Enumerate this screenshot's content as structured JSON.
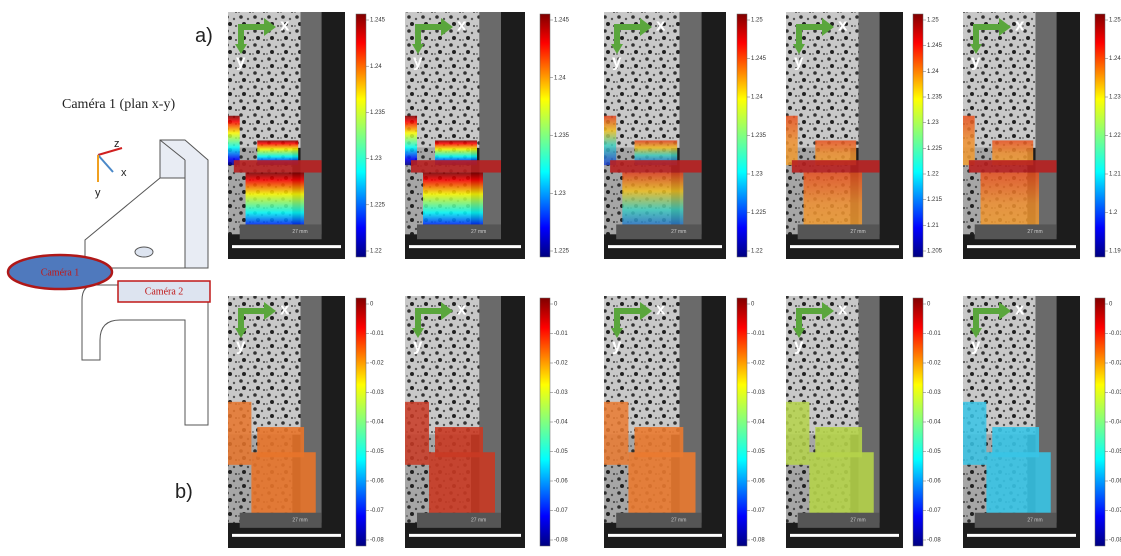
{
  "labels": {
    "a": "a)",
    "b": "b)"
  },
  "diagram": {
    "title": "Caméra 1 (plan x-y)",
    "axes": [
      "z",
      "x",
      "y"
    ],
    "camera_1": "Caméra 1",
    "camera_2": "Caméra 2"
  },
  "rows": [
    {
      "panels": [
        {
          "axis_x": "x",
          "axis_y": "y",
          "scale": "27 mm",
          "colorbar": [
            "1.245",
            "1.24",
            "1.235",
            "1.23",
            "1.225",
            "1.22"
          ]
        },
        {
          "axis_x": "x",
          "axis_y": "y",
          "scale": "27 mm",
          "colorbar": [
            "1.245",
            "1.24",
            "1.235",
            "1.23",
            "1.225"
          ]
        },
        {
          "axis_x": "x",
          "axis_y": "y",
          "scale": "27 mm",
          "colorbar": [
            "1.25",
            "1.245",
            "1.24",
            "1.235",
            "1.23",
            "1.225",
            "1.22"
          ]
        },
        {
          "axis_x": "x",
          "axis_y": "y",
          "scale": "27 mm",
          "colorbar": [
            "1.25",
            "1.245",
            "1.24",
            "1.235",
            "1.23",
            "1.225",
            "1.22",
            "1.215",
            "1.21",
            "1.205"
          ]
        },
        {
          "axis_x": "x",
          "axis_y": "y",
          "scale": "27 mm",
          "colorbar": [
            "1.25",
            "1.24",
            "1.23",
            "1.22",
            "1.21",
            "1.2",
            "1.19"
          ]
        }
      ]
    },
    {
      "panels": [
        {
          "axis_x": "x",
          "axis_y": "y",
          "scale": "27 mm",
          "colorbar": [
            "0",
            "-0.01",
            "-0.02",
            "-0.03",
            "-0.04",
            "-0.05",
            "-0.06",
            "-0.07",
            "-0.08"
          ]
        },
        {
          "axis_x": "x",
          "axis_y": "y",
          "scale": "27 mm",
          "colorbar": [
            "0",
            "-0.01",
            "-0.02",
            "-0.03",
            "-0.04",
            "-0.05",
            "-0.06",
            "-0.07",
            "-0.08"
          ]
        },
        {
          "axis_x": "x",
          "axis_y": "y",
          "scale": "27 mm",
          "colorbar": [
            "0",
            "-0.01",
            "-0.02",
            "-0.03",
            "-0.04",
            "-0.05",
            "-0.06",
            "-0.07",
            "-0.08"
          ]
        },
        {
          "axis_x": "x",
          "axis_y": "y",
          "scale": "27 mm",
          "colorbar": [
            "0",
            "-0.01",
            "-0.02",
            "-0.03",
            "-0.04",
            "-0.05",
            "-0.06",
            "-0.07",
            "-0.08"
          ]
        },
        {
          "axis_x": "x",
          "axis_y": "y",
          "scale": "27 mm",
          "colorbar": [
            "0",
            "-0.01",
            "-0.02",
            "-0.03",
            "-0.04",
            "-0.05",
            "-0.06",
            "-0.07",
            "-0.08"
          ]
        }
      ]
    }
  ]
}
